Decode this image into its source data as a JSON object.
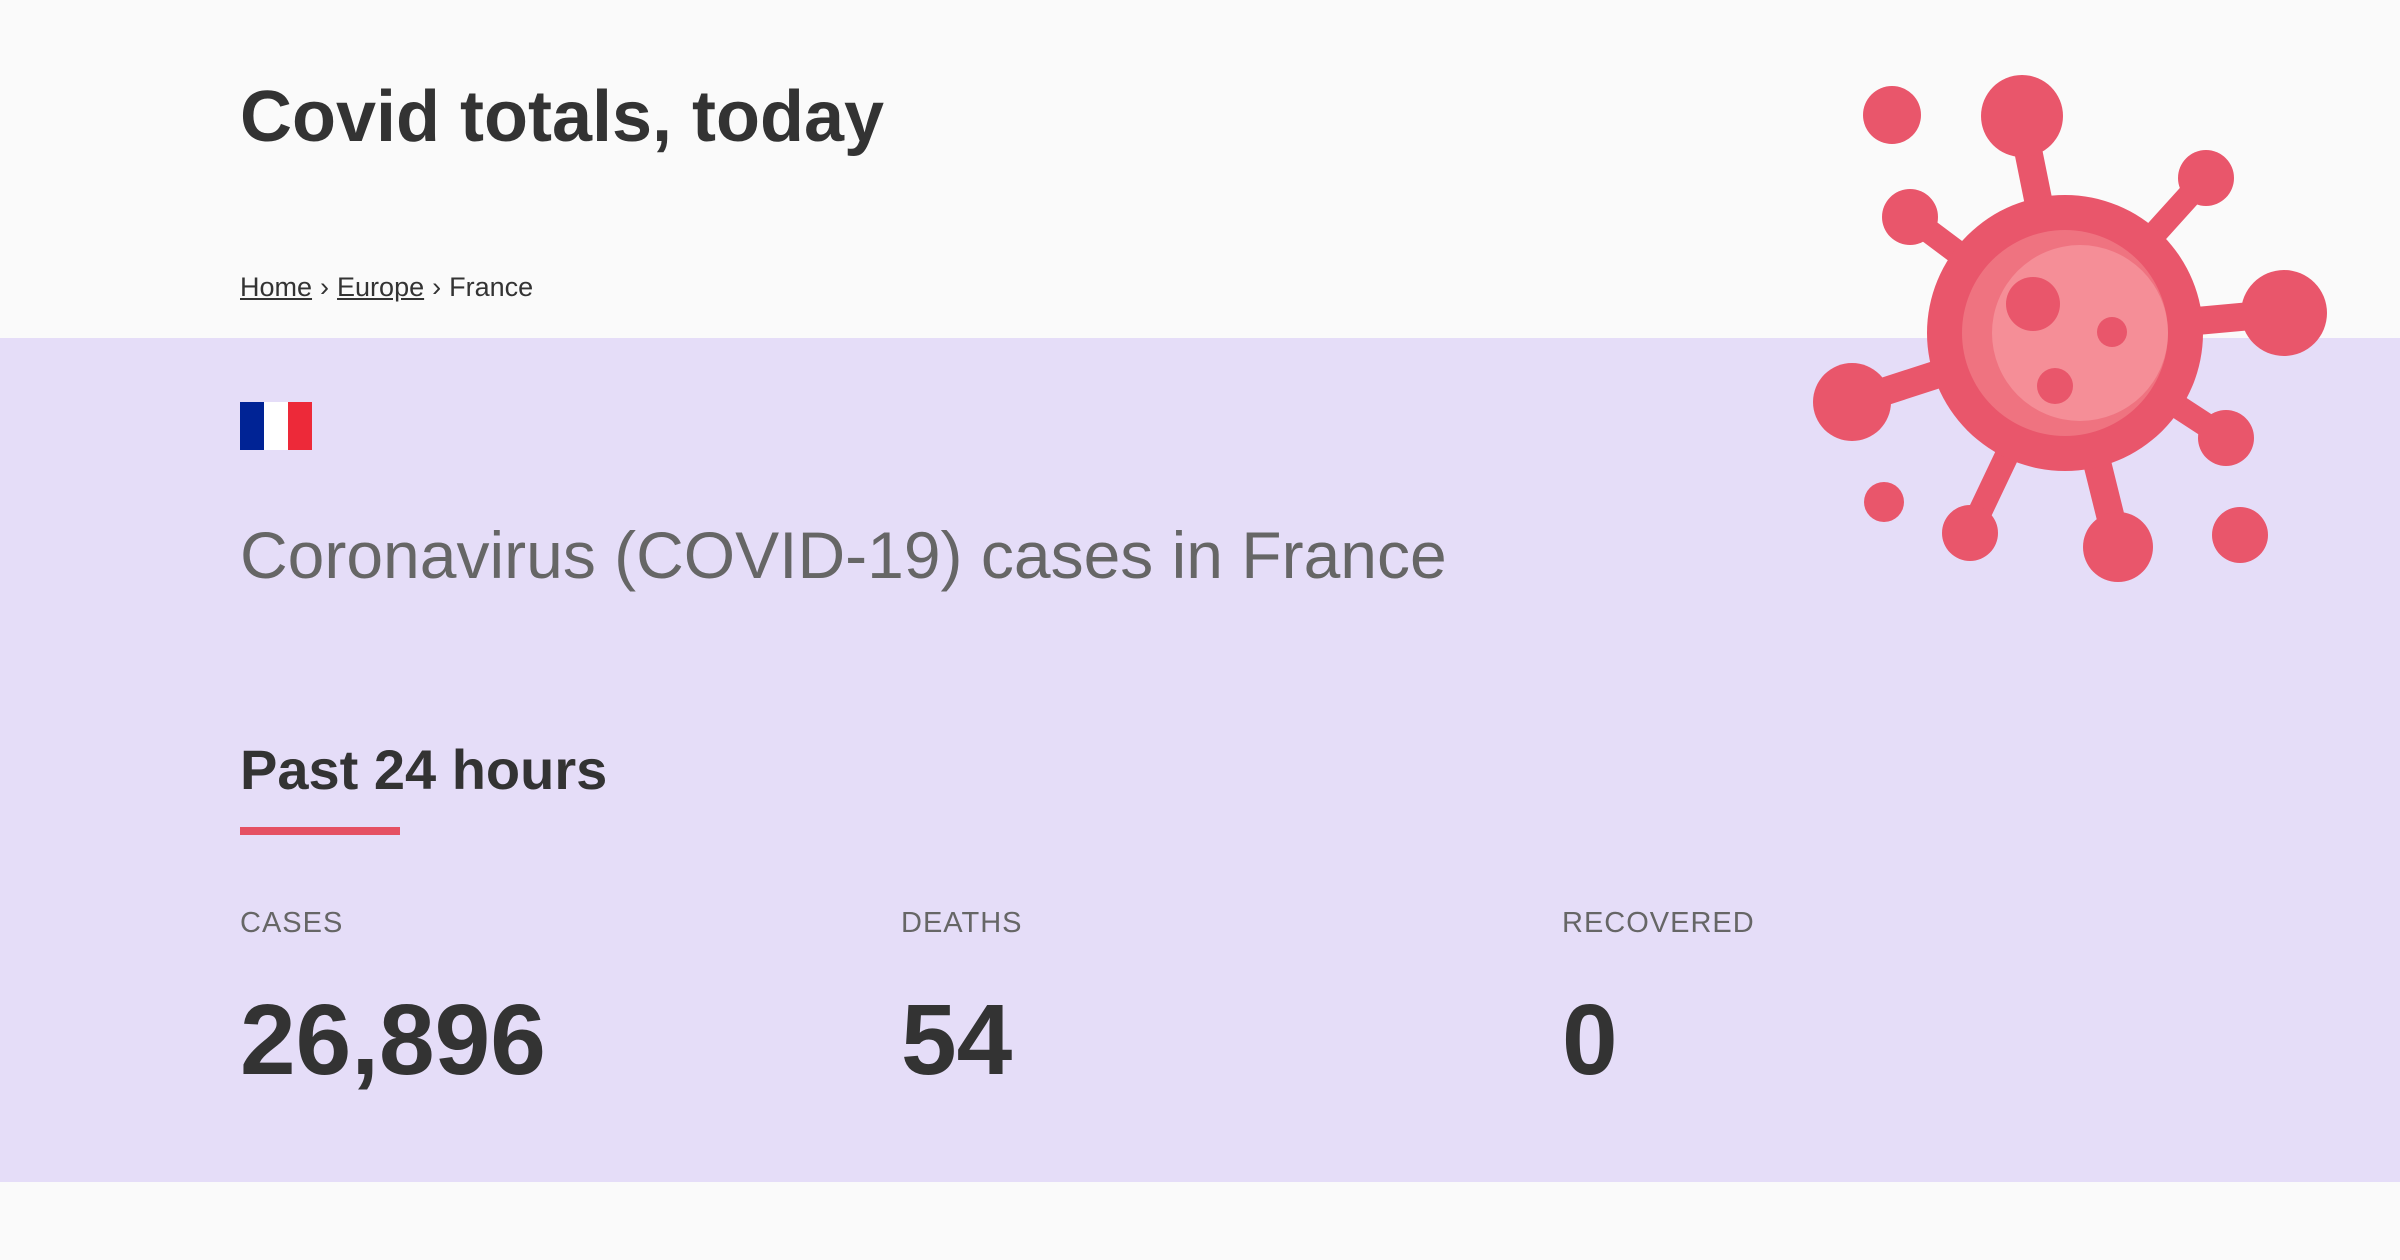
{
  "header": {
    "title": "Covid totals, today"
  },
  "breadcrumb": {
    "items": [
      {
        "label": "Home"
      },
      {
        "label": "Europe"
      },
      {
        "label": "France"
      }
    ],
    "separator": "›"
  },
  "country": {
    "flag_icon": "france-flag-icon",
    "flag_colors": [
      "#002395",
      "#ffffff",
      "#ed2939"
    ],
    "heading": "Coronavirus (COVID-19) cases in France"
  },
  "section": {
    "title": "Past 24 hours",
    "accent_color": "#e55063"
  },
  "stats": {
    "cases": {
      "label": "CASES",
      "value": "26,896"
    },
    "deaths": {
      "label": "DEATHS",
      "value": "54"
    },
    "recovered": {
      "label": "RECOVERED",
      "value": "0"
    }
  },
  "illustration": {
    "icon": "virus-icon",
    "color": "#e9566b"
  },
  "colors": {
    "hero_background": "#e5ddf8",
    "page_background": "#fafafa",
    "text": "#333333",
    "muted_text": "#666666"
  }
}
